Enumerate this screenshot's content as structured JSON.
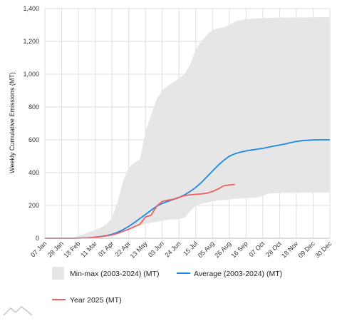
{
  "chart_data": {
    "type": "line",
    "title": "",
    "xlabel": "",
    "ylabel": "Weekly Cumulative Emissions (MT)",
    "ylim": [
      0,
      1400
    ],
    "y_ticks": [
      "0",
      "200",
      "400",
      "600",
      "800",
      "1,000",
      "1,200",
      "1,400"
    ],
    "x_ticks": [
      "07 Jan",
      "28 Jan",
      "18 Feb",
      "11 Mar",
      "01 Apr",
      "22 Apr",
      "13 May",
      "03 Jun",
      "24 Jun",
      "15 Jul",
      "05 Aug",
      "26 Aug",
      "16 Sep",
      "07 Oct",
      "28 Oct",
      "18 Nov",
      "09 Dec",
      "30 Dec"
    ],
    "grid": true,
    "legend_position": "bottom",
    "series": [
      {
        "name": "Min-max (2003-2024) (MT)",
        "kind": "range",
        "color": "#e6e6e6",
        "x": [
          "07 Jan",
          "14 Jan",
          "21 Jan",
          "28 Jan",
          "04 Feb",
          "11 Feb",
          "18 Feb",
          "25 Feb",
          "04 Mar",
          "11 Mar",
          "18 Mar",
          "25 Mar",
          "01 Apr",
          "08 Apr",
          "15 Apr",
          "22 Apr",
          "29 Apr",
          "06 May",
          "13 May",
          "20 May",
          "27 May",
          "03 Jun",
          "10 Jun",
          "17 Jun",
          "24 Jun",
          "01 Jul",
          "08 Jul",
          "15 Jul",
          "22 Jul",
          "29 Jul",
          "05 Aug",
          "12 Aug",
          "19 Aug",
          "26 Aug",
          "02 Sep",
          "09 Sep",
          "16 Sep",
          "23 Sep",
          "30 Sep",
          "07 Oct",
          "14 Oct",
          "21 Oct",
          "28 Oct",
          "04 Nov",
          "11 Nov",
          "18 Nov",
          "25 Nov",
          "02 Dec",
          "09 Dec",
          "16 Dec",
          "23 Dec",
          "30 Dec"
        ],
        "low": [
          0,
          0,
          0,
          0,
          0,
          0,
          1,
          2,
          4,
          8,
          12,
          15,
          20,
          30,
          45,
          60,
          70,
          80,
          88,
          95,
          100,
          108,
          112,
          115,
          118,
          125,
          165,
          200,
          210,
          218,
          225,
          230,
          234,
          237,
          240,
          242,
          244,
          246,
          248,
          258,
          272,
          275,
          276,
          277,
          277,
          277,
          278,
          278,
          278,
          278,
          278,
          278
        ],
        "high": [
          0,
          0,
          0,
          0,
          2,
          5,
          15,
          25,
          40,
          50,
          65,
          85,
          120,
          220,
          350,
          430,
          460,
          480,
          650,
          750,
          850,
          900,
          930,
          950,
          975,
          1000,
          1060,
          1150,
          1200,
          1240,
          1270,
          1280,
          1285,
          1300,
          1320,
          1330,
          1335,
          1338,
          1340,
          1342,
          1343,
          1344,
          1345,
          1345,
          1345,
          1345,
          1346,
          1346,
          1346,
          1347,
          1347,
          1347
        ]
      },
      {
        "name": "Average (2003-2024) (MT)",
        "kind": "line",
        "color": "#1e88e5",
        "x": [
          "07 Jan",
          "14 Jan",
          "21 Jan",
          "28 Jan",
          "04 Feb",
          "11 Feb",
          "18 Feb",
          "25 Feb",
          "04 Mar",
          "11 Mar",
          "18 Mar",
          "25 Mar",
          "01 Apr",
          "08 Apr",
          "15 Apr",
          "22 Apr",
          "29 Apr",
          "06 May",
          "13 May",
          "20 May",
          "27 May",
          "03 Jun",
          "10 Jun",
          "17 Jun",
          "24 Jun",
          "01 Jul",
          "08 Jul",
          "15 Jul",
          "22 Jul",
          "29 Jul",
          "05 Aug",
          "12 Aug",
          "19 Aug",
          "26 Aug",
          "02 Sep",
          "09 Sep",
          "16 Sep",
          "23 Sep",
          "30 Sep",
          "07 Oct",
          "14 Oct",
          "21 Oct",
          "28 Oct",
          "04 Nov",
          "11 Nov",
          "18 Nov",
          "25 Nov",
          "02 Dec",
          "09 Dec",
          "16 Dec",
          "23 Dec",
          "30 Dec"
        ],
        "y": [
          0,
          0,
          0,
          0,
          0,
          0,
          1,
          2,
          4,
          7,
          11,
          16,
          24,
          36,
          52,
          72,
          95,
          120,
          145,
          170,
          195,
          212,
          225,
          237,
          248,
          265,
          285,
          310,
          340,
          375,
          410,
          445,
          475,
          500,
          515,
          525,
          532,
          538,
          543,
          548,
          555,
          562,
          568,
          575,
          583,
          590,
          595,
          597,
          599,
          600,
          600,
          600
        ]
      },
      {
        "name": "Year 2025 (MT)",
        "kind": "line",
        "color": "#f06060",
        "x": [
          "07 Jan",
          "14 Jan",
          "21 Jan",
          "28 Jan",
          "04 Feb",
          "11 Feb",
          "18 Feb",
          "25 Feb",
          "04 Mar",
          "11 Mar",
          "18 Mar",
          "25 Mar",
          "01 Apr",
          "08 Apr",
          "15 Apr",
          "22 Apr",
          "29 Apr",
          "06 May",
          "13 May",
          "20 May",
          "27 May",
          "03 Jun",
          "10 Jun",
          "17 Jun",
          "24 Jun",
          "01 Jul",
          "08 Jul",
          "15 Jul",
          "22 Jul",
          "29 Jul",
          "05 Aug",
          "12 Aug",
          "19 Aug",
          "26 Aug",
          "02 Sep"
        ],
        "y": [
          0,
          0,
          0,
          0,
          0,
          0,
          1,
          2,
          3,
          6,
          10,
          14,
          20,
          30,
          42,
          55,
          70,
          85,
          130,
          140,
          195,
          225,
          232,
          238,
          250,
          260,
          265,
          268,
          270,
          275,
          285,
          300,
          320,
          325,
          328
        ]
      }
    ]
  }
}
